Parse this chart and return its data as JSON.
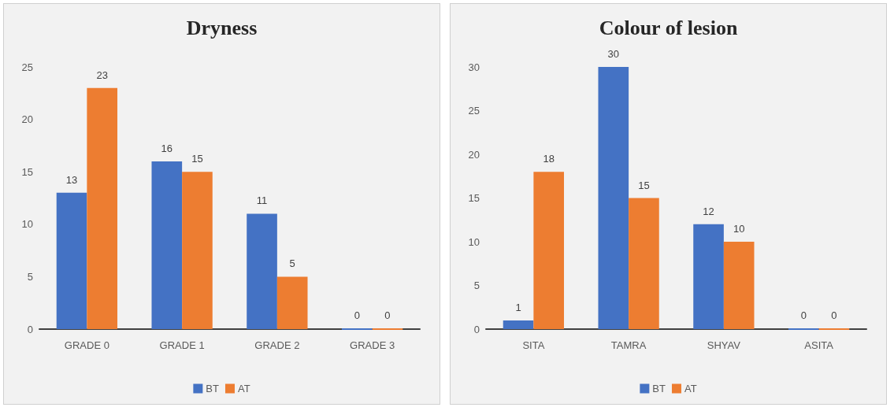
{
  "chart_data": [
    {
      "type": "bar",
      "title": "Dryness",
      "categories": [
        "GRADE 0",
        "GRADE 1",
        "GRADE 2",
        "GRADE 3"
      ],
      "series": [
        {
          "name": "BT",
          "color": "#4472c4",
          "values": [
            13,
            16,
            11,
            0
          ]
        },
        {
          "name": "AT",
          "color": "#ed7d31",
          "values": [
            23,
            15,
            5,
            0
          ]
        }
      ],
      "ylim": [
        0,
        25
      ],
      "yticks": [
        0,
        5,
        10,
        15,
        20,
        25
      ],
      "data_labels": true,
      "legend": "bottom"
    },
    {
      "type": "bar",
      "title": "Colour of lesion",
      "categories": [
        "SITA",
        "TAMRA",
        "SHYAV",
        "ASITA"
      ],
      "series": [
        {
          "name": "BT",
          "color": "#4472c4",
          "values": [
            1,
            30,
            12,
            0
          ]
        },
        {
          "name": "AT",
          "color": "#ed7d31",
          "values": [
            18,
            15,
            10,
            0
          ]
        }
      ],
      "ylim": [
        0,
        30
      ],
      "yticks": [
        0,
        5,
        10,
        15,
        20,
        25,
        30
      ],
      "data_labels": true,
      "legend": "bottom"
    }
  ]
}
